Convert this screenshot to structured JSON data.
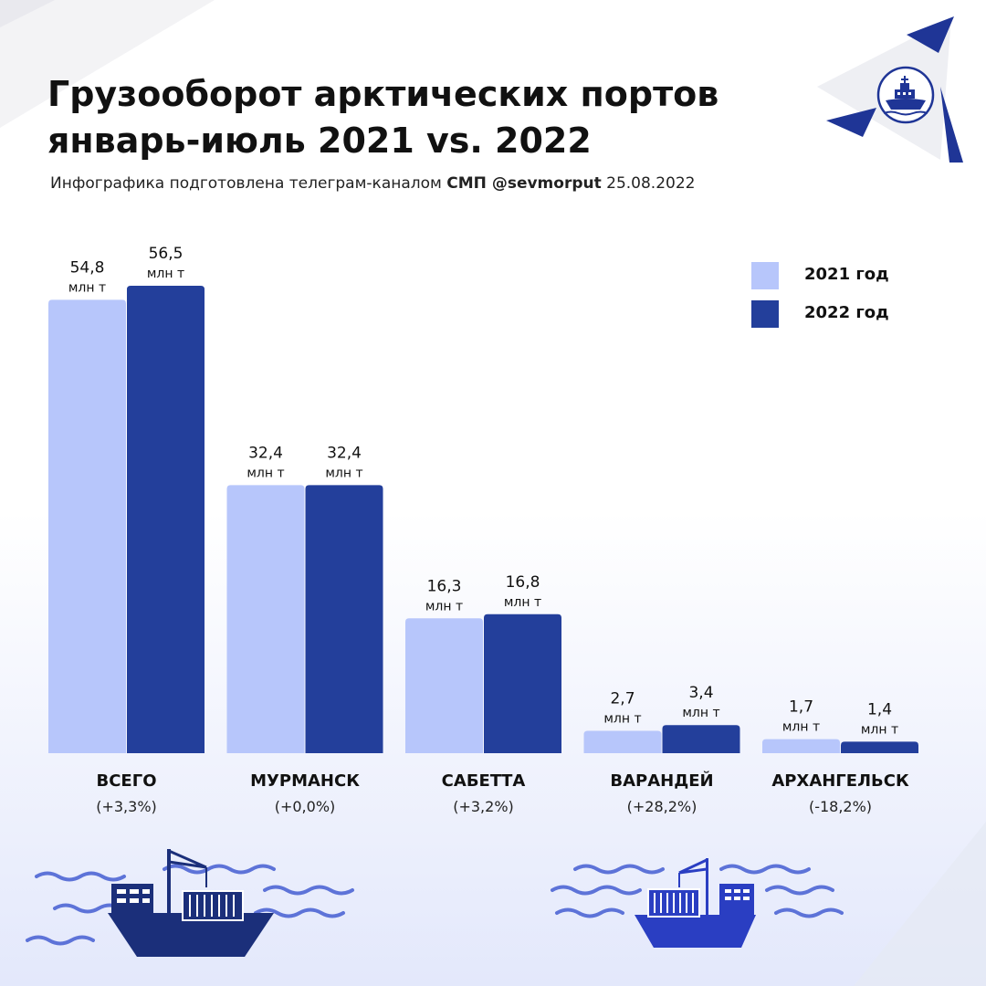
{
  "header": {
    "title_line1": "Грузооборот арктических портов",
    "title_line2": "январь-июль 2021 vs. 2022",
    "subtitle_prefix": "Инфографика подготовлена телеграм-каналом",
    "subtitle_channel": "СМП @sevmorput",
    "subtitle_date": "25.08.2022"
  },
  "colors": {
    "series_2021": "#b7c6fb",
    "series_2022": "#233f9b",
    "accent": "#1f3596",
    "wave": "#5d73d8"
  },
  "icons": [
    "logo-icebreaker-icon",
    "cargo-ship-icon",
    "cargo-ship-icon"
  ],
  "chart_data": {
    "type": "bar",
    "unit": "млн т",
    "categories": [
      "ВСЕГО",
      "МУРМАНСК",
      "САБЕТТА",
      "ВАРАНДЕЙ",
      "АРХАНГЕЛЬСК"
    ],
    "changes": [
      "(+3,3%)",
      "(+0,0%)",
      "(+3,2%)",
      "(+28,2%)",
      "(-18,2%)"
    ],
    "series": [
      {
        "name": "2021 год",
        "values": [
          54.8,
          32.4,
          16.3,
          2.7,
          1.7
        ],
        "labels": [
          "54,8",
          "32,4",
          "16,3",
          "2,7",
          "1,7"
        ]
      },
      {
        "name": "2022 год",
        "values": [
          56.5,
          32.4,
          16.8,
          3.4,
          1.4
        ],
        "labels": [
          "56,5",
          "32,4",
          "16,8",
          "3,4",
          "1,4"
        ]
      }
    ],
    "ylim": [
      0,
      56.5
    ],
    "grid": false,
    "legend_position": "top-right"
  }
}
